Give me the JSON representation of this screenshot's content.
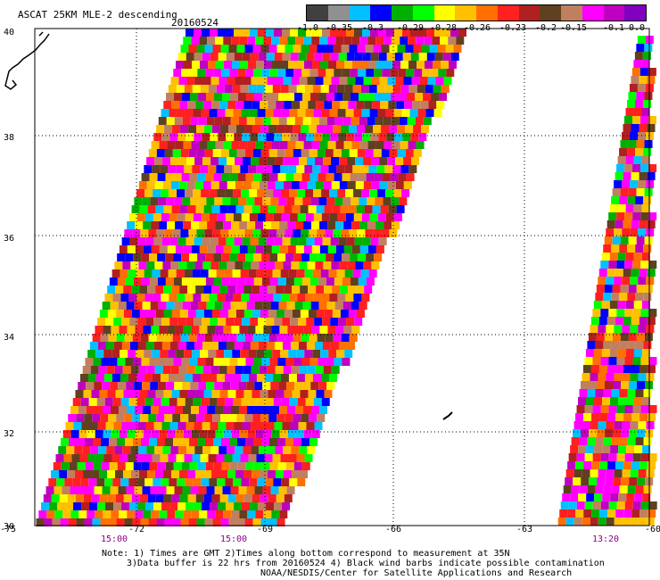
{
  "title": "ASCAT 25KM MLE-2 descending",
  "date": "20160524",
  "colorbar": {
    "colors": [
      "#404040",
      "#909090",
      "#00c0ff",
      "#0000ff",
      "#00b000",
      "#00ff00",
      "#ffff00",
      "#ffc000",
      "#ff7000",
      "#ff2020",
      "#b02020",
      "#604020",
      "#c08060",
      "#ff00ff",
      "#c000c0",
      "#8000c0"
    ],
    "labels": [
      "-1.0",
      "-0.35",
      "-0.3",
      "-0.29",
      "-0.28",
      "-0.26",
      "-0.23",
      "-0.2",
      "-0.15",
      "-0.1",
      "0.0"
    ]
  },
  "axes": {
    "lat_labels": [
      "40",
      "38",
      "36",
      "34",
      "32",
      "30"
    ],
    "lon_labels": [
      "-75",
      "-72",
      "-69",
      "-66",
      "-63",
      "-60"
    ],
    "time_labels": [
      "15:00",
      "15:00",
      "13:20"
    ]
  },
  "notes": [
    "Note: 1) Times are GMT 2)Times along bottom correspond to measurement at 35N",
    "3)Data buffer is 22 hrs from 20160524 4) Black wind barbs indicate possible contamination",
    "NOAA/NESDIS/Center for Satellite Applications and Research"
  ]
}
